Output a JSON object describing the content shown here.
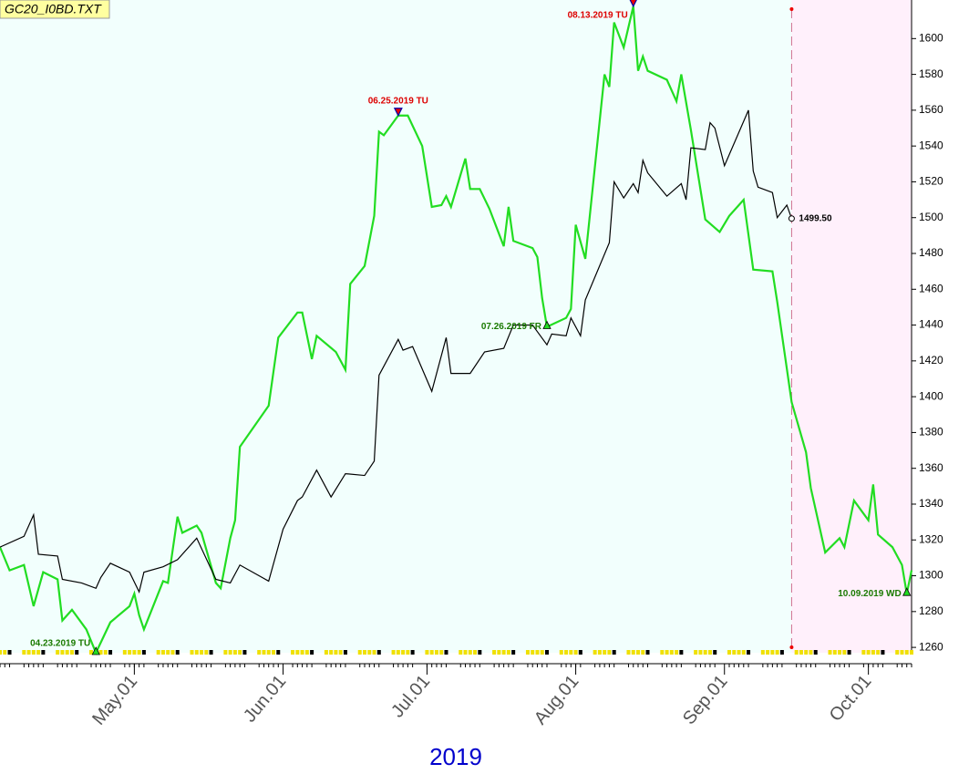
{
  "chart_data": {
    "type": "line",
    "title": "GC20_I0BD.TXT",
    "x_label": "2019",
    "xlim": [
      "2019-04-03",
      "2019-10-10"
    ],
    "xticks": [
      {
        "value": "2019-05-01",
        "label": "May.01"
      },
      {
        "value": "2019-06-01",
        "label": "Jun.01"
      },
      {
        "value": "2019-07-01",
        "label": "Jul.01"
      },
      {
        "value": "2019-08-01",
        "label": "Aug.01"
      },
      {
        "value": "2019-09-01",
        "label": "Sep.01"
      },
      {
        "value": "2019-10-01",
        "label": "Oct.01"
      }
    ],
    "ylim": [
      1257,
      1619
    ],
    "yticks": [
      1260,
      1280,
      1300,
      1320,
      1340,
      1360,
      1380,
      1400,
      1420,
      1440,
      1460,
      1480,
      1500,
      1520,
      1540,
      1560,
      1580,
      1600
    ],
    "forecast_start": "2019-09-15",
    "forecast_color": "#fff0fb",
    "background": "#f2fffd",
    "series": [
      {
        "color": "#22dd22",
        "x": [
          "2019-04-03",
          "2019-04-05",
          "2019-04-08",
          "2019-04-10",
          "2019-04-12",
          "2019-04-15",
          "2019-04-16",
          "2019-04-18",
          "2019-04-21",
          "2019-04-23",
          "2019-04-26",
          "2019-04-30",
          "2019-05-01",
          "2019-05-02",
          "2019-05-03",
          "2019-05-07",
          "2019-05-08",
          "2019-05-10",
          "2019-05-11",
          "2019-05-14",
          "2019-05-15",
          "2019-05-18",
          "2019-05-19",
          "2019-05-21",
          "2019-05-22",
          "2019-05-23",
          "2019-05-29",
          "2019-05-31",
          "2019-06-04",
          "2019-06-05",
          "2019-06-07",
          "2019-06-08",
          "2019-06-12",
          "2019-06-14",
          "2019-06-15",
          "2019-06-18",
          "2019-06-20",
          "2019-06-21",
          "2019-06-22",
          "2019-06-25",
          "2019-06-27",
          "2019-06-30",
          "2019-07-02",
          "2019-07-04",
          "2019-07-05",
          "2019-07-06",
          "2019-07-09",
          "2019-07-10",
          "2019-07-12",
          "2019-07-14",
          "2019-07-17",
          "2019-07-18",
          "2019-07-19",
          "2019-07-23",
          "2019-07-24",
          "2019-07-25",
          "2019-07-26",
          "2019-07-30",
          "2019-07-31",
          "2019-08-01",
          "2019-08-03",
          "2019-08-07",
          "2019-08-08",
          "2019-08-09",
          "2019-08-11",
          "2019-08-13",
          "2019-08-14",
          "2019-08-15",
          "2019-08-16",
          "2019-08-20",
          "2019-08-22",
          "2019-08-23",
          "2019-08-25",
          "2019-08-28",
          "2019-08-31",
          "2019-09-02",
          "2019-09-05",
          "2019-09-07",
          "2019-09-11",
          "2019-09-12",
          "2019-09-15",
          "2019-09-18",
          "2019-09-19",
          "2019-09-22",
          "2019-09-25",
          "2019-09-26",
          "2019-09-28",
          "2019-10-01",
          "2019-10-02",
          "2019-10-03",
          "2019-10-06",
          "2019-10-08",
          "2019-10-09",
          "2019-10-10"
        ],
        "values": [
          1316,
          1303,
          1306,
          1283,
          1302,
          1298,
          1275,
          1281,
          1270,
          1257,
          1274,
          1283,
          1290,
          1278,
          1270,
          1297,
          1296,
          1333,
          1324,
          1328,
          1324,
          1296,
          1293,
          1321,
          1331,
          1372,
          1395,
          1433,
          1447,
          1447,
          1421,
          1434,
          1425,
          1415,
          1463,
          1473,
          1501,
          1548,
          1546,
          1557,
          1557,
          1540,
          1506,
          1507,
          1512,
          1506,
          1533,
          1516,
          1516,
          1505,
          1484,
          1506,
          1487,
          1483,
          1478,
          1455,
          1439,
          1444,
          1449,
          1496,
          1477,
          1580,
          1573,
          1609,
          1595,
          1618,
          1582,
          1590,
          1582,
          1577,
          1565,
          1580,
          1549,
          1499,
          1492,
          1501,
          1510,
          1471,
          1470,
          1453,
          1397,
          1369,
          1349,
          1313,
          1321,
          1316,
          1342,
          1331,
          1351,
          1323,
          1316,
          1306,
          1290,
          1303
        ]
      },
      {
        "color": "#000000",
        "x": [
          "2019-04-03",
          "2019-04-08",
          "2019-04-10",
          "2019-04-11",
          "2019-04-15",
          "2019-04-16",
          "2019-04-20",
          "2019-04-23",
          "2019-04-24",
          "2019-04-26",
          "2019-04-30",
          "2019-05-02",
          "2019-05-03",
          "2019-05-07",
          "2019-05-10",
          "2019-05-14",
          "2019-05-18",
          "2019-05-21",
          "2019-05-23",
          "2019-05-29",
          "2019-06-01",
          "2019-06-04",
          "2019-06-05",
          "2019-06-08",
          "2019-06-11",
          "2019-06-14",
          "2019-06-18",
          "2019-06-20",
          "2019-06-21",
          "2019-06-25",
          "2019-06-26",
          "2019-06-28",
          "2019-07-02",
          "2019-07-05",
          "2019-07-06",
          "2019-07-10",
          "2019-07-13",
          "2019-07-17",
          "2019-07-19",
          "2019-07-23",
          "2019-07-26",
          "2019-07-27",
          "2019-07-30",
          "2019-07-31",
          "2019-08-02",
          "2019-08-03",
          "2019-08-08",
          "2019-08-09",
          "2019-08-11",
          "2019-08-13",
          "2019-08-14",
          "2019-08-15",
          "2019-08-16",
          "2019-08-20",
          "2019-08-23",
          "2019-08-24",
          "2019-08-25",
          "2019-08-28",
          "2019-08-29",
          "2019-08-30",
          "2019-09-01",
          "2019-09-06",
          "2019-09-07",
          "2019-09-08",
          "2019-09-11",
          "2019-09-12",
          "2019-09-14",
          "2019-09-15"
        ],
        "values": [
          1316,
          1322,
          1334,
          1312,
          1311,
          1298,
          1296,
          1293,
          1299,
          1307,
          1302,
          1291,
          1302,
          1305,
          1309,
          1321,
          1298,
          1296,
          1306,
          1297,
          1326,
          1342,
          1344,
          1359,
          1344,
          1357,
          1356,
          1364,
          1412,
          1432,
          1426,
          1428,
          1403,
          1433,
          1413,
          1413,
          1425,
          1427,
          1440,
          1440,
          1429,
          1435,
          1434,
          1444,
          1434,
          1454,
          1486,
          1520,
          1511,
          1519,
          1514,
          1532,
          1525,
          1512,
          1519,
          1510,
          1539,
          1538,
          1553,
          1550,
          1529,
          1560,
          1526,
          1517,
          1514,
          1500,
          1507,
          1499.5
        ]
      }
    ],
    "annotations": [
      {
        "label": "04.23.2019 TU",
        "x": "2019-04-23",
        "y": 1257,
        "color": "#1a7a00",
        "marker": "up"
      },
      {
        "label": "06.25.2019 TU",
        "x": "2019-06-25",
        "y": 1557,
        "color": "#dd0000",
        "marker": "down",
        "position": "above"
      },
      {
        "label": "07.26.2019 FR",
        "x": "2019-07-26",
        "y": 1439,
        "color": "#1a7a00",
        "marker": "up"
      },
      {
        "label": "08.13.2019 TU",
        "x": "2019-08-13",
        "y": 1618,
        "color": "#dd0000",
        "marker": "down"
      },
      {
        "label": "10.09.2019 WD",
        "x": "2019-10-09",
        "y": 1290,
        "color": "#1a7a00",
        "marker": "up"
      },
      {
        "label": "1499.50",
        "x": "2019-09-15",
        "y": 1499.5,
        "color": "#000000",
        "marker": "circle",
        "position": "right"
      }
    ]
  }
}
